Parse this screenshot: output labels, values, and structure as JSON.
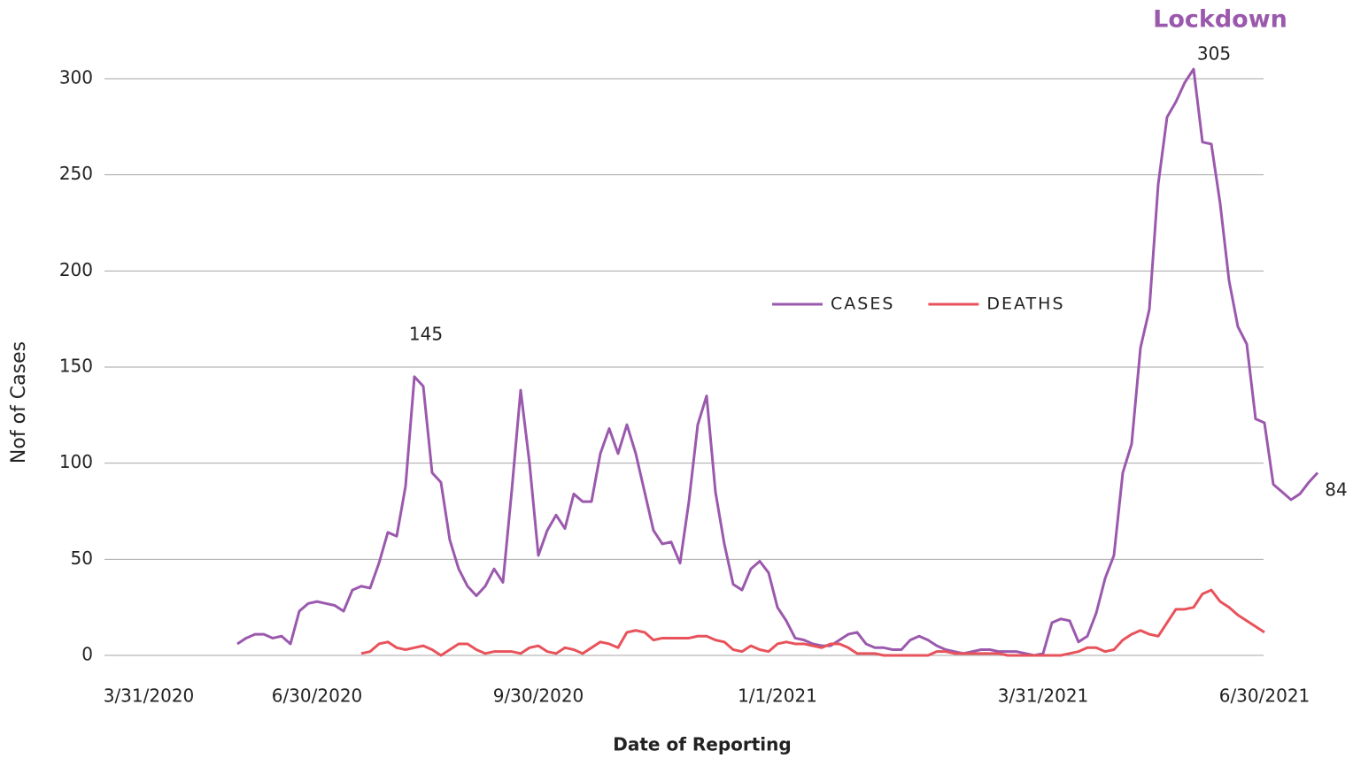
{
  "chart_data": {
    "type": "line",
    "title": "Lockdown",
    "annotations": [
      "145",
      "305",
      "84"
    ],
    "xlabel": "Date of Reporting",
    "ylabel": "Nof of Cases",
    "categories": [
      null,
      null,
      null,
      null,
      null,
      "3/31/2020",
      null,
      null,
      null,
      null,
      null,
      null,
      null,
      null,
      null,
      null,
      null,
      null,
      null,
      null,
      null,
      null,
      null,
      null,
      "6/30/2020",
      null,
      null,
      null,
      null,
      null,
      null,
      null,
      null,
      null,
      null,
      null,
      null,
      null,
      null,
      null,
      null,
      null,
      null,
      null,
      null,
      null,
      null,
      null,
      null,
      "9/30/2020",
      null,
      null,
      null,
      null,
      null,
      null,
      null,
      null,
      null,
      null,
      null,
      null,
      null,
      null,
      null,
      null,
      null,
      null,
      null,
      null,
      null,
      null,
      null,
      null,
      null,
      null,
      "1/1/2021",
      null,
      null,
      null,
      null,
      null,
      null,
      null,
      null,
      null,
      null,
      null,
      null,
      null,
      null,
      null,
      null,
      null,
      null,
      null,
      null,
      null,
      null,
      null,
      null,
      null,
      null,
      null,
      null,
      null,
      "3/31/2021",
      null,
      null,
      null,
      null,
      null,
      null,
      null,
      null,
      null,
      null,
      null,
      null,
      null,
      null,
      null,
      null,
      null,
      null,
      null,
      null,
      null,
      null,
      null,
      null,
      "6/30/2021",
      null,
      null,
      null,
      null,
      null,
      null
    ],
    "series": [
      {
        "name": "CASES",
        "color": "#9b59ad",
        "values": [
          null,
          null,
          null,
          null,
          null,
          null,
          null,
          null,
          null,
          null,
          null,
          null,
          null,
          null,
          null,
          6,
          9,
          11,
          11,
          9,
          10,
          6,
          23,
          27,
          28,
          27,
          26,
          23,
          34,
          36,
          35,
          48,
          64,
          62,
          88,
          145,
          140,
          95,
          90,
          60,
          45,
          36,
          31,
          36,
          45,
          38,
          86,
          138,
          100,
          52,
          65,
          73,
          66,
          84,
          80,
          80,
          105,
          118,
          105,
          120,
          105,
          85,
          65,
          58,
          59,
          48,
          80,
          120,
          135,
          85,
          58,
          37,
          34,
          45,
          49,
          43,
          25,
          18,
          9,
          8,
          6,
          5,
          5,
          8,
          11,
          12,
          6,
          4,
          4,
          3,
          3,
          8,
          10,
          8,
          5,
          3,
          2,
          1,
          2,
          3,
          3,
          2,
          2,
          2,
          1,
          0,
          1,
          17,
          19,
          18,
          7,
          10,
          22,
          40,
          52,
          95,
          110,
          160,
          180,
          245,
          280,
          288,
          298,
          305,
          267,
          266,
          235,
          195,
          171,
          162,
          123,
          121,
          89,
          85,
          81,
          84,
          90,
          95
        ]
      },
      {
        "name": "DEATHS",
        "color": "#e8525a",
        "values": [
          null,
          null,
          null,
          null,
          null,
          null,
          null,
          null,
          null,
          null,
          null,
          null,
          null,
          null,
          null,
          null,
          null,
          null,
          null,
          null,
          null,
          null,
          null,
          null,
          null,
          null,
          null,
          null,
          null,
          1,
          2,
          6,
          7,
          4,
          3,
          4,
          5,
          3,
          0,
          3,
          6,
          6,
          3,
          1,
          2,
          2,
          2,
          1,
          4,
          5,
          2,
          1,
          4,
          3,
          1,
          4,
          7,
          6,
          4,
          12,
          13,
          12,
          8,
          9,
          9,
          9,
          9,
          10,
          10,
          8,
          7,
          3,
          2,
          5,
          3,
          2,
          6,
          7,
          6,
          6,
          5,
          4,
          6,
          6,
          4,
          1,
          1,
          1,
          0,
          0,
          0,
          0,
          0,
          0,
          2,
          2,
          1,
          1,
          1,
          1,
          1,
          1,
          0,
          0,
          0,
          0,
          0,
          0,
          0,
          1,
          2,
          4,
          4,
          2,
          3,
          8,
          11,
          13,
          11,
          10,
          17,
          24,
          24,
          25,
          32,
          34,
          28,
          25,
          21,
          18,
          15,
          12,
          null,
          null,
          null,
          null,
          null,
          null
        ]
      }
    ],
    "ylim": [
      0,
      300
    ],
    "yticks": [
      0,
      50,
      100,
      150,
      200,
      250,
      300
    ],
    "grid": true,
    "legend_position": "center"
  }
}
